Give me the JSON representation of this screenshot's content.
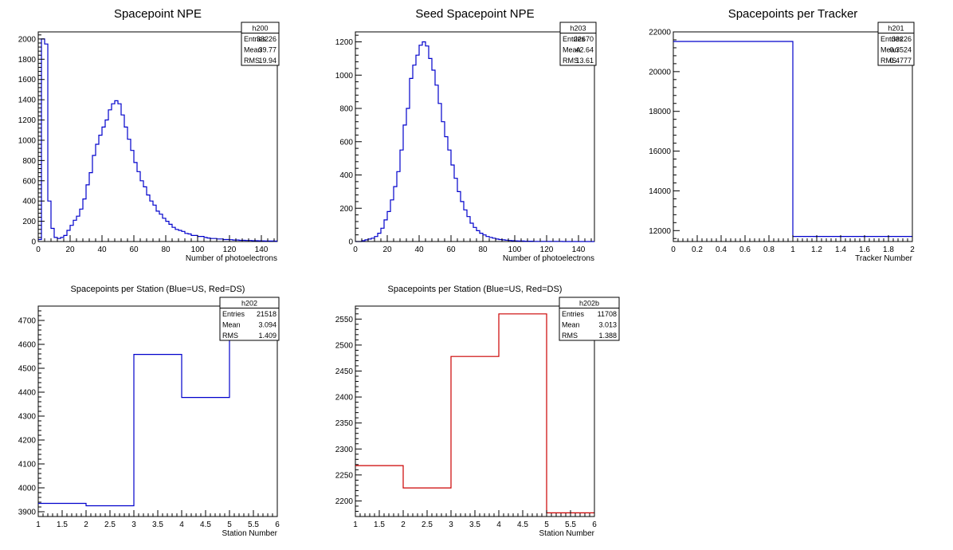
{
  "chart_data": [
    {
      "id": "h200",
      "type": "histogram",
      "title": "Spacepoint NPE",
      "xlabel": "Number of photoelectrons",
      "ylabel": "",
      "xlim": [
        0,
        150
      ],
      "ylim": [
        0,
        2070
      ],
      "xticks": [
        0,
        20,
        40,
        60,
        80,
        100,
        120,
        140
      ],
      "yticks": [
        0,
        200,
        400,
        600,
        800,
        1000,
        1200,
        1400,
        1600,
        1800,
        2000
      ],
      "line_color": "#0000cc",
      "bin_width": 2,
      "values": [
        20,
        2000,
        1950,
        400,
        130,
        40,
        30,
        40,
        60,
        110,
        160,
        210,
        250,
        320,
        420,
        560,
        680,
        850,
        960,
        1050,
        1130,
        1200,
        1300,
        1360,
        1390,
        1360,
        1250,
        1130,
        1010,
        900,
        780,
        690,
        600,
        540,
        460,
        400,
        360,
        300,
        270,
        230,
        200,
        170,
        140,
        120,
        110,
        100,
        80,
        75,
        60,
        60,
        50,
        50,
        40,
        35,
        30,
        30,
        25,
        25,
        20,
        20,
        18,
        15,
        15,
        12,
        12,
        10,
        10,
        8,
        8,
        7,
        6,
        5,
        5,
        5,
        4
      ],
      "stats": {
        "name": "h200",
        "rows": [
          [
            "Entries",
            "33226"
          ],
          [
            "Mean",
            "39.77"
          ],
          [
            "RMS",
            "19.94"
          ]
        ]
      }
    },
    {
      "id": "h203",
      "type": "histogram",
      "title": "Seed Spacepoint NPE",
      "xlabel": "Number of photoelectrons",
      "ylabel": "",
      "xlim": [
        0,
        150
      ],
      "ylim": [
        0,
        1260
      ],
      "xticks": [
        0,
        20,
        40,
        60,
        80,
        100,
        120,
        140
      ],
      "yticks": [
        0,
        200,
        400,
        600,
        800,
        1000,
        1200
      ],
      "line_color": "#0000cc",
      "bin_width": 2,
      "values": [
        0,
        0,
        5,
        10,
        15,
        20,
        30,
        50,
        80,
        130,
        180,
        250,
        330,
        420,
        550,
        700,
        800,
        980,
        1060,
        1120,
        1180,
        1200,
        1175,
        1100,
        1030,
        940,
        830,
        720,
        630,
        550,
        460,
        380,
        300,
        240,
        190,
        150,
        110,
        85,
        65,
        50,
        40,
        30,
        25,
        20,
        15,
        12,
        10,
        8,
        6,
        5,
        4,
        3,
        3,
        2,
        2,
        2,
        1,
        1,
        1,
        1,
        1,
        1,
        1,
        1,
        1,
        0,
        0,
        0,
        0,
        0,
        0,
        0,
        0,
        0,
        0
      ],
      "stats": {
        "name": "h203",
        "rows": [
          [
            "Entries",
            "22670"
          ],
          [
            "Mean",
            "42.64"
          ],
          [
            "RMS",
            "13.61"
          ]
        ]
      }
    },
    {
      "id": "h201",
      "type": "histogram",
      "title": "Spacepoints per Tracker",
      "xlabel": "Tracker Number",
      "ylabel": "",
      "xlim": [
        0,
        2
      ],
      "ylim": [
        11450,
        22000
      ],
      "xticks": [
        0,
        0.2,
        0.4,
        0.6,
        0.8,
        1,
        1.2,
        1.4,
        1.6,
        1.8,
        2
      ],
      "yticks": [
        12000,
        14000,
        16000,
        18000,
        20000,
        22000
      ],
      "line_color": "#0000cc",
      "bin_width": 1,
      "values": [
        21518,
        11708
      ],
      "stats": {
        "name": "h201",
        "rows": [
          [
            "Entries",
            "33226"
          ],
          [
            "Mean",
            "0.3524"
          ],
          [
            "RMS",
            "0.4777"
          ]
        ]
      }
    },
    {
      "id": "h202",
      "type": "histogram",
      "title": "Spacepoints per Station (Blue=US, Red=DS)",
      "xlabel": "Station Number",
      "ylabel": "",
      "xlim": [
        1,
        6
      ],
      "ylim": [
        3880,
        4760
      ],
      "xticks": [
        1,
        1.5,
        2,
        2.5,
        3,
        3.5,
        4,
        4.5,
        5,
        5.5,
        6
      ],
      "yticks": [
        3900,
        4000,
        4100,
        4200,
        4300,
        4400,
        4500,
        4600,
        4700
      ],
      "line_color": "#0000cc",
      "bin_width": 1,
      "values": [
        3935,
        3925,
        4558,
        4378,
        4722
      ],
      "stats": {
        "name": "h202",
        "rows": [
          [
            "Entries",
            "21518"
          ],
          [
            "Mean",
            "3.094"
          ],
          [
            "RMS",
            "1.409"
          ]
        ]
      }
    },
    {
      "id": "h202b",
      "type": "histogram",
      "title": "Spacepoints per Station (Blue=US, Red=DS)",
      "xlabel": "Station Number",
      "ylabel": "",
      "xlim": [
        1,
        6
      ],
      "ylim": [
        2170,
        2575
      ],
      "xticks": [
        1,
        1.5,
        2,
        2.5,
        3,
        3.5,
        4,
        4.5,
        5,
        5.5,
        6
      ],
      "yticks": [
        2200,
        2250,
        2300,
        2350,
        2400,
        2450,
        2500,
        2550
      ],
      "line_color": "#cc0000",
      "bin_width": 1,
      "values": [
        2268,
        2225,
        2478,
        2560,
        2177
      ],
      "stats": {
        "name": "h202b",
        "rows": [
          [
            "Entries",
            "11708"
          ],
          [
            "Mean",
            "3.013"
          ],
          [
            "RMS",
            "1.388"
          ]
        ]
      }
    }
  ]
}
